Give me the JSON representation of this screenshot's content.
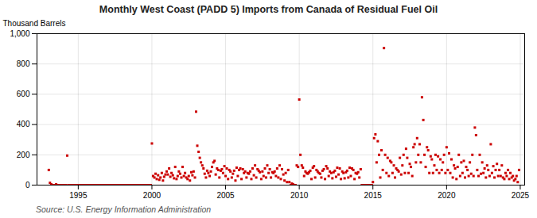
{
  "chart_data": {
    "type": "scatter",
    "title": "Monthly West Coast (PADD 5) Imports from Canada of Residual Fuel Oil",
    "ylabel": "Thousand Barrels",
    "caption": "Source: U.S. Energy Information Administration",
    "color": "#cc0000",
    "marker": "square",
    "grid": true,
    "xlim": [
      1992.2,
      2025.3
    ],
    "ylim": [
      0,
      1000
    ],
    "xticks": [
      1995,
      2000,
      2005,
      2010,
      2015,
      2020,
      2025
    ],
    "yticks": [
      0,
      200,
      400,
      600,
      800,
      {
        "value": 1000,
        "label": "1,000"
      }
    ],
    "x": [
      1993.0,
      1993.08,
      1993.17,
      1993.25,
      1993.33,
      1993.42,
      1993.5,
      1993.58,
      1993.67,
      1993.75,
      1993.83,
      1993.92,
      1994.0,
      1994.08,
      1994.17,
      1994.25,
      1994.33,
      1994.42,
      1994.5,
      1994.58,
      1994.67,
      1994.75,
      1994.83,
      1994.92,
      1995.0,
      1995.08,
      1995.17,
      1995.25,
      1995.33,
      1995.42,
      1995.5,
      1995.58,
      1995.67,
      1995.75,
      1995.83,
      1995.92,
      1996.0,
      1996.08,
      1996.17,
      1996.25,
      1996.33,
      1996.42,
      1996.5,
      1996.58,
      1996.67,
      1996.75,
      1996.83,
      1996.92,
      1997.0,
      1997.08,
      1997.17,
      1997.25,
      1997.33,
      1997.42,
      1997.5,
      1997.58,
      1997.67,
      1997.75,
      1997.83,
      1997.92,
      1998.0,
      1998.08,
      1998.17,
      1998.25,
      1998.33,
      1998.42,
      1998.5,
      1998.58,
      1998.67,
      1998.75,
      1998.83,
      1998.92,
      1999.0,
      1999.08,
      1999.17,
      1999.25,
      1999.33,
      1999.42,
      1999.5,
      1999.58,
      1999.67,
      1999.75,
      1999.83,
      1999.92,
      2000.0,
      2000.08,
      2000.17,
      2000.25,
      2000.33,
      2000.42,
      2000.5,
      2000.58,
      2000.67,
      2000.75,
      2000.83,
      2000.92,
      2001.0,
      2001.08,
      2001.17,
      2001.25,
      2001.33,
      2001.42,
      2001.5,
      2001.58,
      2001.67,
      2001.75,
      2001.83,
      2001.92,
      2002.0,
      2002.08,
      2002.17,
      2002.25,
      2002.33,
      2002.42,
      2002.5,
      2002.58,
      2002.67,
      2002.75,
      2002.83,
      2002.92,
      2003.0,
      2003.08,
      2003.17,
      2003.25,
      2003.33,
      2003.42,
      2003.5,
      2003.58,
      2003.67,
      2003.75,
      2003.83,
      2003.92,
      2004.0,
      2004.08,
      2004.17,
      2004.25,
      2004.33,
      2004.42,
      2004.5,
      2004.58,
      2004.67,
      2004.75,
      2004.83,
      2004.92,
      2005.0,
      2005.08,
      2005.17,
      2005.25,
      2005.33,
      2005.42,
      2005.5,
      2005.58,
      2005.67,
      2005.75,
      2005.83,
      2005.92,
      2006.0,
      2006.08,
      2006.17,
      2006.25,
      2006.33,
      2006.42,
      2006.5,
      2006.58,
      2006.67,
      2006.75,
      2006.83,
      2006.92,
      2007.0,
      2007.08,
      2007.17,
      2007.25,
      2007.33,
      2007.42,
      2007.5,
      2007.58,
      2007.67,
      2007.75,
      2007.83,
      2007.92,
      2008.0,
      2008.08,
      2008.17,
      2008.25,
      2008.33,
      2008.42,
      2008.5,
      2008.58,
      2008.67,
      2008.75,
      2008.83,
      2008.92,
      2009.0,
      2009.08,
      2009.17,
      2009.25,
      2009.33,
      2009.42,
      2009.5,
      2009.58,
      2009.67,
      2009.75,
      2009.83,
      2009.92,
      2010.0,
      2010.08,
      2010.17,
      2010.25,
      2010.33,
      2010.42,
      2010.5,
      2010.58,
      2010.67,
      2010.75,
      2010.83,
      2010.92,
      2011.0,
      2011.08,
      2011.17,
      2011.25,
      2011.33,
      2011.42,
      2011.5,
      2011.58,
      2011.67,
      2011.75,
      2011.83,
      2011.92,
      2012.0,
      2012.08,
      2012.17,
      2012.25,
      2012.33,
      2012.42,
      2012.5,
      2012.58,
      2012.67,
      2012.75,
      2012.83,
      2012.92,
      2013.0,
      2013.08,
      2013.17,
      2013.25,
      2013.33,
      2013.42,
      2013.5,
      2013.58,
      2013.67,
      2013.75,
      2013.83,
      2013.92,
      2014.0,
      2014.08,
      2014.17,
      2014.25,
      2014.33,
      2014.42,
      2014.5,
      2014.58,
      2014.67,
      2014.75,
      2014.83,
      2014.92,
      2015.0,
      2015.08,
      2015.17,
      2015.25,
      2015.33,
      2015.42,
      2015.5,
      2015.58,
      2015.67,
      2015.75,
      2015.83,
      2015.92,
      2016.0,
      2016.08,
      2016.17,
      2016.25,
      2016.33,
      2016.42,
      2016.5,
      2016.58,
      2016.67,
      2016.75,
      2016.83,
      2016.92,
      2017.0,
      2017.08,
      2017.17,
      2017.25,
      2017.33,
      2017.42,
      2017.5,
      2017.58,
      2017.67,
      2017.75,
      2017.83,
      2017.92,
      2018.0,
      2018.08,
      2018.17,
      2018.25,
      2018.33,
      2018.42,
      2018.5,
      2018.58,
      2018.67,
      2018.75,
      2018.83,
      2018.92,
      2019.0,
      2019.08,
      2019.17,
      2019.25,
      2019.33,
      2019.42,
      2019.5,
      2019.58,
      2019.67,
      2019.75,
      2019.83,
      2019.92,
      2020.0,
      2020.08,
      2020.17,
      2020.25,
      2020.33,
      2020.42,
      2020.5,
      2020.58,
      2020.67,
      2020.75,
      2020.83,
      2020.92,
      2021.0,
      2021.08,
      2021.17,
      2021.25,
      2021.33,
      2021.42,
      2021.5,
      2021.58,
      2021.67,
      2021.75,
      2021.83,
      2021.92,
      2022.0,
      2022.08,
      2022.17,
      2022.25,
      2022.33,
      2022.42,
      2022.5,
      2022.58,
      2022.67,
      2022.75,
      2022.83,
      2022.92,
      2023.0,
      2023.08,
      2023.17,
      2023.25,
      2023.33,
      2023.42,
      2023.5,
      2023.58,
      2023.67,
      2023.75,
      2023.83,
      2023.92,
      2024.0,
      2024.08,
      2024.17,
      2024.25,
      2024.33,
      2024.42,
      2024.5,
      2024.58,
      2024.67,
      2024.75,
      2024.83,
      2024.92
    ],
    "values": [
      100,
      15,
      5,
      0,
      0,
      0,
      5,
      0,
      0,
      0,
      0,
      0,
      0,
      0,
      0,
      195,
      0,
      0,
      0,
      0,
      0,
      0,
      0,
      0,
      0,
      0,
      0,
      0,
      0,
      0,
      0,
      0,
      0,
      0,
      0,
      0,
      0,
      0,
      0,
      0,
      0,
      0,
      0,
      0,
      0,
      0,
      0,
      0,
      0,
      0,
      0,
      0,
      0,
      0,
      0,
      0,
      0,
      0,
      0,
      0,
      0,
      0,
      0,
      0,
      0,
      0,
      0,
      0,
      0,
      0,
      0,
      0,
      0,
      0,
      0,
      0,
      0,
      0,
      0,
      0,
      0,
      0,
      0,
      0,
      275,
      60,
      50,
      75,
      40,
      65,
      35,
      50,
      80,
      30,
      55,
      70,
      90,
      70,
      110,
      55,
      80,
      65,
      45,
      120,
      40,
      60,
      90,
      75,
      50,
      120,
      60,
      80,
      50,
      40,
      60,
      30,
      85,
      65,
      90,
      50,
      485,
      260,
      220,
      180,
      150,
      130,
      110,
      75,
      50,
      95,
      80,
      60,
      90,
      120,
      150,
      160,
      70,
      110,
      100,
      50,
      95,
      105,
      80,
      125,
      60,
      110,
      40,
      100,
      90,
      50,
      75,
      95,
      30,
      115,
      60,
      100,
      110,
      40,
      105,
      80,
      90,
      50,
      80,
      75,
      90,
      40,
      110,
      65,
      130,
      50,
      105,
      95,
      85,
      40,
      90,
      60,
      110,
      50,
      130,
      80,
      105,
      50,
      85,
      80,
      90,
      60,
      110,
      50,
      130,
      40,
      105,
      70,
      30,
      80,
      20,
      100,
      20,
      0,
      10,
      5,
      0,
      0,
      130,
      120,
      565,
      200,
      130,
      115,
      60,
      90,
      80,
      75,
      85,
      95,
      40,
      115,
      125,
      50,
      100,
      90,
      80,
      75,
      50,
      95,
      105,
      40,
      125,
      110,
      60,
      90,
      80,
      45,
      85,
      95,
      55,
      115,
      70,
      110,
      40,
      90,
      80,
      45,
      85,
      95,
      50,
      115,
      60,
      110,
      100,
      40,
      80,
      75,
      85,
      50,
      105,
      0,
      0,
      0,
      0,
      0,
      0,
      0,
      0,
      0,
      20,
      310,
      335,
      150,
      290,
      200,
      50,
      230,
      100,
      905,
      200,
      80,
      180,
      60,
      160,
      150,
      80,
      130,
      50,
      110,
      100,
      90,
      180,
      70,
      130,
      200,
      80,
      240,
      180,
      80,
      140,
      120,
      60,
      250,
      270,
      150,
      310,
      200,
      270,
      150,
      580,
      430,
      200,
      120,
      250,
      230,
      80,
      190,
      170,
      80,
      130,
      200,
      100,
      190,
      80,
      170,
      100,
      150,
      200,
      80,
      250,
      100,
      210,
      80,
      170,
      50,
      130,
      110,
      40,
      120,
      200,
      60,
      150,
      80,
      160,
      50,
      120,
      100,
      60,
      150,
      75,
      200,
      60,
      380,
      330,
      100,
      60,
      200,
      75,
      150,
      80,
      110,
      50,
      130,
      100,
      60,
      270,
      80,
      125,
      50,
      100,
      140,
      60,
      100,
      60,
      130,
      50,
      40,
      80,
      60,
      100,
      40,
      80,
      50,
      60,
      30,
      40,
      60,
      20,
      100
    ]
  }
}
